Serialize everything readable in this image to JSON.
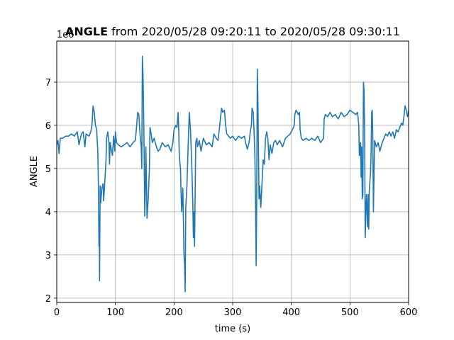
{
  "chart_data": {
    "type": "line",
    "title_bold": "ANGLE",
    "title_rest": " from 2020/05/28 09:20:11 to 2020/05/28 09:30:11",
    "xlabel": "time (s)",
    "ylabel": "ANGLE",
    "offset_text": "1e6",
    "xlim": [
      0,
      600
    ],
    "ylim": [
      1.9,
      7.95
    ],
    "x_ticks": [
      0,
      100,
      200,
      300,
      400,
      500,
      600
    ],
    "x_tick_labels": [
      "0",
      "100",
      "200",
      "300",
      "400",
      "500",
      "600"
    ],
    "y_ticks": [
      2,
      3,
      4,
      5,
      6,
      7
    ],
    "y_tick_labels": [
      "2",
      "3",
      "4",
      "5",
      "6",
      "7"
    ],
    "grid": true,
    "line_color": "#1f77b4",
    "series": [
      {
        "points": [
          [
            0,
            5.55
          ],
          [
            2,
            5.65
          ],
          [
            4,
            5.35
          ],
          [
            6,
            5.7
          ],
          [
            10,
            5.7
          ],
          [
            15,
            5.75
          ],
          [
            20,
            5.75
          ],
          [
            25,
            5.8
          ],
          [
            30,
            5.75
          ],
          [
            35,
            5.85
          ],
          [
            38,
            5.55
          ],
          [
            42,
            5.8
          ],
          [
            45,
            5.85
          ],
          [
            48,
            5.5
          ],
          [
            50,
            5.8
          ],
          [
            55,
            5.75
          ],
          [
            58,
            5.85
          ],
          [
            60,
            6.0
          ],
          [
            62,
            6.45
          ],
          [
            64,
            6.3
          ],
          [
            66,
            6.0
          ],
          [
            68,
            5.9
          ],
          [
            70,
            5.4
          ],
          [
            71,
            4.6
          ],
          [
            72,
            3.2
          ],
          [
            72.5,
            3.9
          ],
          [
            73,
            2.4
          ],
          [
            74,
            4.6
          ],
          [
            75,
            4.2
          ],
          [
            77,
            4.55
          ],
          [
            79,
            4.65
          ],
          [
            80,
            4.25
          ],
          [
            82,
            4.7
          ],
          [
            84,
            5.2
          ],
          [
            85,
            5.7
          ],
          [
            87,
            5.85
          ],
          [
            89,
            5.6
          ],
          [
            90,
            5.1
          ],
          [
            91,
            5.6
          ],
          [
            93,
            5.45
          ],
          [
            95,
            5.3
          ],
          [
            97,
            5.75
          ],
          [
            99,
            5.4
          ],
          [
            100,
            5.85
          ],
          [
            102,
            5.6
          ],
          [
            105,
            5.55
          ],
          [
            110,
            5.5
          ],
          [
            115,
            5.55
          ],
          [
            120,
            5.6
          ],
          [
            125,
            5.5
          ],
          [
            130,
            5.6
          ],
          [
            134,
            5.65
          ],
          [
            136,
            5.95
          ],
          [
            138,
            6.3
          ],
          [
            140,
            6.25
          ],
          [
            142,
            5.8
          ],
          [
            144,
            5.5
          ],
          [
            145,
            5.0
          ],
          [
            146,
            7.6
          ],
          [
            147,
            7.2
          ],
          [
            148,
            6.5
          ],
          [
            149,
            5.4
          ],
          [
            150,
            3.9
          ],
          [
            151,
            4.4
          ],
          [
            152,
            5.5
          ],
          [
            153,
            4.7
          ],
          [
            154,
            3.85
          ],
          [
            156,
            4.3
          ],
          [
            158,
            5.0
          ],
          [
            159,
            5.95
          ],
          [
            161,
            5.8
          ],
          [
            163,
            5.6
          ],
          [
            166,
            5.7
          ],
          [
            170,
            5.5
          ],
          [
            173,
            5.4
          ],
          [
            176,
            5.45
          ],
          [
            180,
            5.6
          ],
          [
            185,
            5.5
          ],
          [
            190,
            5.55
          ],
          [
            195,
            5.4
          ],
          [
            198,
            5.6
          ],
          [
            200,
            5.9
          ],
          [
            203,
            6.0
          ],
          [
            205,
            5.95
          ],
          [
            207,
            6.3
          ],
          [
            208,
            5.9
          ],
          [
            209,
            5.3
          ],
          [
            211,
            5.0
          ],
          [
            212,
            4.45
          ],
          [
            213,
            4.0
          ],
          [
            215,
            4.55
          ],
          [
            217,
            3.0
          ],
          [
            218,
            2.8
          ],
          [
            219,
            2.15
          ],
          [
            220,
            4.1
          ],
          [
            222,
            4.6
          ],
          [
            224,
            5.5
          ],
          [
            226,
            6.3
          ],
          [
            228,
            5.9
          ],
          [
            230,
            5.2
          ],
          [
            232,
            4.2
          ],
          [
            233,
            3.4
          ],
          [
            234,
            4.0
          ],
          [
            235,
            3.2
          ],
          [
            236,
            4.4
          ],
          [
            237,
            5.6
          ],
          [
            239,
            5.7
          ],
          [
            240,
            5.5
          ],
          [
            243,
            5.65
          ],
          [
            246,
            5.4
          ],
          [
            250,
            5.7
          ],
          [
            255,
            5.55
          ],
          [
            260,
            5.6
          ],
          [
            265,
            5.5
          ],
          [
            268,
            5.8
          ],
          [
            272,
            5.7
          ],
          [
            275,
            5.65
          ],
          [
            278,
            6.0
          ],
          [
            281,
            6.4
          ],
          [
            283,
            6.3
          ],
          [
            286,
            6.35
          ],
          [
            288,
            6.0
          ],
          [
            290,
            5.8
          ],
          [
            293,
            5.75
          ],
          [
            296,
            5.7
          ],
          [
            300,
            5.75
          ],
          [
            305,
            5.65
          ],
          [
            310,
            5.75
          ],
          [
            315,
            5.7
          ],
          [
            320,
            5.75
          ],
          [
            322,
            5.6
          ],
          [
            325,
            5.45
          ],
          [
            328,
            5.6
          ],
          [
            330,
            5.85
          ],
          [
            332,
            6.0
          ],
          [
            333,
            6.4
          ],
          [
            335,
            6.3
          ],
          [
            336,
            6.0
          ],
          [
            337,
            5.7
          ],
          [
            338,
            5.2
          ],
          [
            339,
            4.2
          ],
          [
            340,
            2.75
          ],
          [
            341,
            4.3
          ],
          [
            342,
            7.3
          ],
          [
            343,
            6.6
          ],
          [
            344,
            5.4
          ],
          [
            345,
            4.3
          ],
          [
            346,
            4.6
          ],
          [
            348,
            4.1
          ],
          [
            350,
            4.65
          ],
          [
            352,
            5.2
          ],
          [
            354,
            5.1
          ],
          [
            356,
            5.7
          ],
          [
            358,
            5.85
          ],
          [
            360,
            5.7
          ],
          [
            362,
            5.2
          ],
          [
            364,
            5.55
          ],
          [
            367,
            5.35
          ],
          [
            370,
            5.6
          ],
          [
            373,
            5.65
          ],
          [
            376,
            5.55
          ],
          [
            380,
            5.65
          ],
          [
            385,
            5.5
          ],
          [
            390,
            5.7
          ],
          [
            394,
            5.75
          ],
          [
            398,
            5.8
          ],
          [
            402,
            5.9
          ],
          [
            405,
            6.0
          ],
          [
            406,
            6.25
          ],
          [
            408,
            6.35
          ],
          [
            410,
            6.3
          ],
          [
            412,
            6.25
          ],
          [
            414,
            6.3
          ],
          [
            415,
            5.9
          ],
          [
            417,
            5.7
          ],
          [
            420,
            5.65
          ],
          [
            425,
            5.7
          ],
          [
            430,
            5.65
          ],
          [
            435,
            5.7
          ],
          [
            440,
            5.65
          ],
          [
            445,
            5.75
          ],
          [
            450,
            5.6
          ],
          [
            455,
            5.7
          ],
          [
            456,
            6.15
          ],
          [
            458,
            6.25
          ],
          [
            462,
            6.2
          ],
          [
            466,
            6.3
          ],
          [
            470,
            6.2
          ],
          [
            475,
            6.25
          ],
          [
            480,
            6.15
          ],
          [
            485,
            6.3
          ],
          [
            490,
            6.2
          ],
          [
            495,
            6.25
          ],
          [
            500,
            6.35
          ],
          [
            505,
            6.3
          ],
          [
            510,
            6.25
          ],
          [
            513,
            6.3
          ],
          [
            515,
            6.0
          ],
          [
            516,
            5.3
          ],
          [
            518,
            5.6
          ],
          [
            519,
            4.8
          ],
          [
            520,
            5.5
          ],
          [
            521,
            4.3
          ],
          [
            522,
            4.4
          ],
          [
            523,
            7.0
          ],
          [
            524,
            6.8
          ],
          [
            525,
            5.9
          ],
          [
            526,
            3.4
          ],
          [
            528,
            4.4
          ],
          [
            529,
            4.1
          ],
          [
            530,
            3.65
          ],
          [
            531,
            4.4
          ],
          [
            532,
            3.6
          ],
          [
            533,
            4.5
          ],
          [
            535,
            4.9
          ],
          [
            536,
            5.3
          ],
          [
            537,
            6.3
          ],
          [
            538,
            6.35
          ],
          [
            539,
            5.7
          ],
          [
            540,
            4.0
          ],
          [
            542,
            5.65
          ],
          [
            545,
            5.5
          ],
          [
            548,
            5.6
          ],
          [
            551,
            5.4
          ],
          [
            555,
            5.6
          ],
          [
            558,
            5.7
          ],
          [
            561,
            5.8
          ],
          [
            564,
            5.75
          ],
          [
            567,
            5.85
          ],
          [
            570,
            5.75
          ],
          [
            573,
            5.85
          ],
          [
            576,
            5.7
          ],
          [
            579,
            5.9
          ],
          [
            582,
            5.85
          ],
          [
            585,
            5.95
          ],
          [
            588,
            6.05
          ],
          [
            590,
            6.0
          ],
          [
            592,
            6.2
          ],
          [
            594,
            6.45
          ],
          [
            596,
            6.35
          ],
          [
            598,
            6.2
          ],
          [
            600,
            6.35
          ]
        ]
      }
    ]
  }
}
